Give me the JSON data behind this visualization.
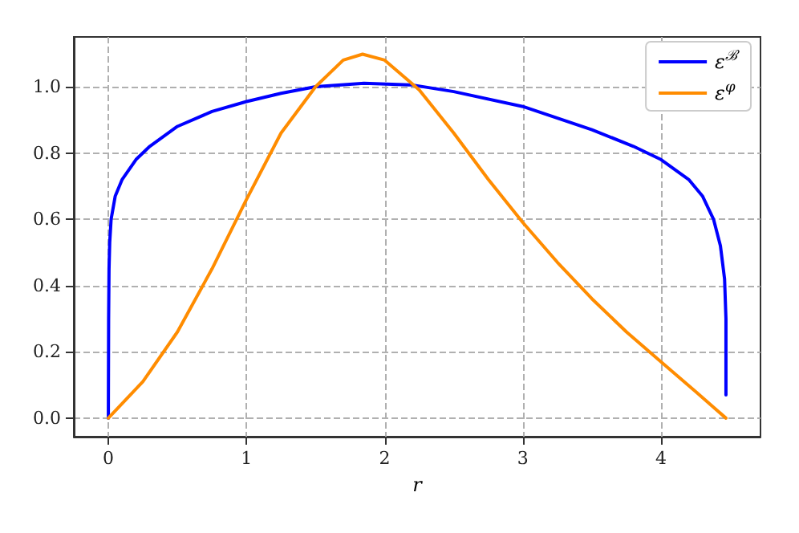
{
  "chart_data": {
    "type": "line",
    "xlabel": "r",
    "xlim": [
      -0.25,
      4.72
    ],
    "ylim": [
      -0.056,
      1.15
    ],
    "xticks": [
      0,
      1,
      2,
      3,
      4
    ],
    "yticks": [
      {
        "value": 0,
        "label": "0.0"
      },
      {
        "value": 0.2,
        "label": "0.2"
      },
      {
        "value": 0.4,
        "label": "0.4"
      },
      {
        "value": 0.6,
        "label": "0.6"
      },
      {
        "value": 0.8,
        "label": "0.8"
      },
      {
        "value": 1,
        "label": "1.0"
      }
    ],
    "grid": true,
    "legend": "top right",
    "line_style": "solid",
    "marker": "none",
    "series": [
      {
        "name": "ε$^{ℬ}$",
        "color": "#0000ff",
        "x": [
          0,
          0.002,
          0.005,
          0.01,
          0.02,
          0.05,
          0.1,
          0.2,
          0.3,
          0.5,
          0.75,
          1,
          1.25,
          1.5,
          1.85,
          2.2,
          2.5,
          3,
          3.5,
          3.8,
          4,
          4.2,
          4.3,
          4.38,
          4.43,
          4.46,
          4.47,
          4.47
        ],
        "values": [
          0,
          0.3,
          0.45,
          0.53,
          0.6,
          0.67,
          0.72,
          0.78,
          0.82,
          0.88,
          0.925,
          0.955,
          0.98,
          1.0,
          1.01,
          1.005,
          0.985,
          0.94,
          0.87,
          0.82,
          0.78,
          0.72,
          0.67,
          0.6,
          0.52,
          0.42,
          0.3,
          0.07
        ]
      },
      {
        "name": "ε$^{φ}$",
        "color": "#ff8c00",
        "x": [
          0,
          0.25,
          0.5,
          0.75,
          1,
          1.25,
          1.5,
          1.7,
          1.84,
          2,
          2.25,
          2.5,
          2.75,
          3,
          3.25,
          3.5,
          3.75,
          4,
          4.25,
          4.47
        ],
        "values": [
          0,
          0.11,
          0.26,
          0.45,
          0.66,
          0.86,
          1.0,
          1.08,
          1.098,
          1.08,
          0.99,
          0.86,
          0.72,
          0.59,
          0.47,
          0.36,
          0.26,
          0.17,
          0.08,
          0
        ]
      }
    ]
  }
}
